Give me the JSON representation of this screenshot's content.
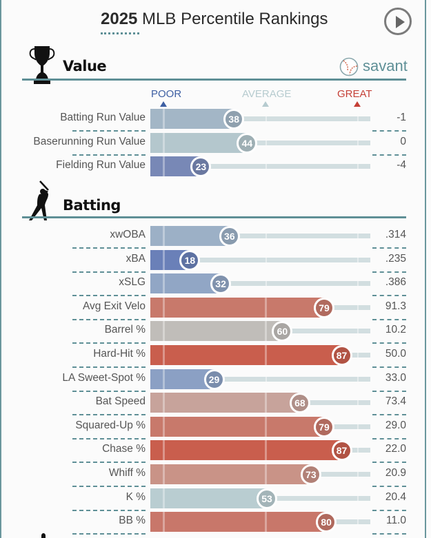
{
  "header": {
    "title_year": "2025",
    "title_rest": " MLB Percentile Rankings",
    "play_button_icon": "play-circle-icon"
  },
  "brand": {
    "label": "savant",
    "icon": "baseball-icon"
  },
  "legend": {
    "poor": "POOR",
    "average": "AVERAGE",
    "great": "GREAT",
    "colors": {
      "poor": "#3d5fa3",
      "average": "#b6cbcf",
      "great": "#c53f36"
    }
  },
  "sections": [
    {
      "title": "Value",
      "icon": "trophy-icon"
    },
    {
      "title": "Batting",
      "icon": "batter-icon"
    }
  ],
  "chart_data": {
    "type": "bar",
    "title": "2025 MLB Percentile Rankings",
    "xlabel": "Percentile",
    "xlim": [
      0,
      100
    ],
    "legend": [
      "POOR",
      "AVERAGE",
      "GREAT"
    ],
    "groups": [
      {
        "name": "Value",
        "rows": [
          {
            "label": "Batting Run Value",
            "percentile": 38,
            "value": "-1",
            "color": "#a3b6c6"
          },
          {
            "label": "Baserunning Run Value",
            "percentile": 44,
            "value": "0",
            "color": "#b4c7cd"
          },
          {
            "label": "Fielding Run Value",
            "percentile": 23,
            "value": "-4",
            "color": "#7888b6"
          }
        ]
      },
      {
        "name": "Batting",
        "rows": [
          {
            "label": "xwOBA",
            "percentile": 36,
            "value": ".314",
            "color": "#9cb0c6"
          },
          {
            "label": "xBA",
            "percentile": 18,
            "value": ".235",
            "color": "#6a80b8"
          },
          {
            "label": "xSLG",
            "percentile": 32,
            "value": ".386",
            "color": "#91a6c5"
          },
          {
            "label": "Avg Exit Velo",
            "percentile": 79,
            "value": "91.3",
            "color": "#c8796b"
          },
          {
            "label": "Barrel %",
            "percentile": 60,
            "value": "10.2",
            "color": "#c0bdb9"
          },
          {
            "label": "Hard-Hit %",
            "percentile": 87,
            "value": "50.0",
            "color": "#c95e4d"
          },
          {
            "label": "LA Sweet-Spot %",
            "percentile": 29,
            "value": "33.0",
            "color": "#8ba0c4"
          },
          {
            "label": "Bat Speed",
            "percentile": 68,
            "value": "73.4",
            "color": "#c7a39b"
          },
          {
            "label": "Squared-Up %",
            "percentile": 79,
            "value": "29.0",
            "color": "#c8796b"
          },
          {
            "label": "Chase %",
            "percentile": 87,
            "value": "22.0",
            "color": "#c95e4d"
          },
          {
            "label": "Whiff %",
            "percentile": 73,
            "value": "20.9",
            "color": "#c99387"
          },
          {
            "label": "K %",
            "percentile": 53,
            "value": "20.4",
            "color": "#b9cdd1"
          },
          {
            "label": "BB %",
            "percentile": 80,
            "value": "11.0",
            "color": "#c8776a"
          }
        ]
      }
    ]
  }
}
